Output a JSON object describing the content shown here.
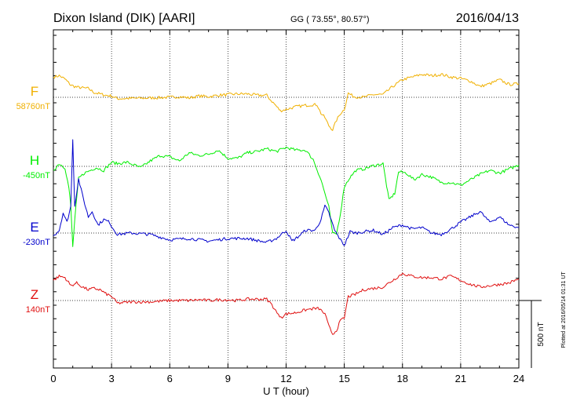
{
  "header": {
    "station": "Dixon Island (DIK)  [AARI]",
    "coords": "GG ( 73.55°,  80.57°)",
    "date": "2016/04/13"
  },
  "footer": {
    "plotted": "Plotted at 2016/05/14 01:31  UT"
  },
  "colors": {
    "F": "#f0b000",
    "H": "#00ee00",
    "E": "#0000cc",
    "Z": "#e01010",
    "axis": "#000000",
    "grid": "#000000"
  },
  "chart_data": {
    "type": "line",
    "xlabel": "U T (hour)",
    "xlim": [
      0,
      24
    ],
    "xticks": [
      0,
      3,
      6,
      9,
      12,
      15,
      18,
      21,
      24
    ],
    "scale_bar": {
      "label": "500 nT",
      "value": 500
    },
    "series": [
      {
        "name": "F",
        "baseline_label": "58760nT",
        "baseline": 58760,
        "x": [
          0,
          0.3,
          0.6,
          0.9,
          1.2,
          1.5,
          1.8,
          2.1,
          2.4,
          2.7,
          3.0,
          3.3,
          4,
          5,
          6,
          6.5,
          7,
          7.5,
          8,
          8.5,
          9,
          9.5,
          10,
          10.5,
          11,
          11.2,
          11.4,
          11.7,
          12,
          12.5,
          13,
          13.3,
          13.6,
          13.8,
          14,
          14.2,
          14.4,
          14.6,
          14.8,
          15.0,
          15.2,
          15.5,
          16,
          16.5,
          17,
          17.5,
          18,
          18.5,
          19,
          19.5,
          20,
          20.5,
          21,
          21.5,
          22,
          22.5,
          23,
          23.5,
          24
        ],
        "values": [
          150,
          160,
          135,
          90,
          75,
          70,
          65,
          35,
          25,
          15,
          10,
          -10,
          -8,
          -5,
          0,
          5,
          -5,
          10,
          5,
          15,
          20,
          25,
          25,
          15,
          15,
          -20,
          -50,
          -100,
          -90,
          -70,
          -60,
          -55,
          -55,
          -120,
          -150,
          -210,
          -240,
          -170,
          -120,
          -90,
          30,
          5,
          0,
          20,
          20,
          80,
          130,
          150,
          170,
          160,
          170,
          150,
          140,
          120,
          80,
          100,
          130,
          95,
          100
        ]
      },
      {
        "name": "H",
        "baseline_label": "-450nT",
        "baseline": -450,
        "x": [
          0,
          0.3,
          0.6,
          0.8,
          0.9,
          1.0,
          1.1,
          1.3,
          1.6,
          1.9,
          2.2,
          2.6,
          3.0,
          3.3,
          3.8,
          4.5,
          5,
          5.5,
          6,
          6.5,
          7,
          7.5,
          8,
          8.5,
          9,
          9.5,
          10,
          10.5,
          11,
          11.5,
          12,
          12.5,
          13,
          13.4,
          13.8,
          14.0,
          14.2,
          14.4,
          14.6,
          14.8,
          15.0,
          15.3,
          15.6,
          16,
          16.5,
          17,
          17.3,
          17.6,
          17.8,
          18.2,
          18.6,
          19,
          19.5,
          20,
          20.5,
          21,
          21.5,
          22,
          22.5,
          23,
          23.5,
          24
        ],
        "values": [
          -30,
          20,
          -10,
          -160,
          -300,
          -600,
          -400,
          -90,
          -50,
          -30,
          -10,
          -30,
          30,
          20,
          30,
          -10,
          40,
          80,
          70,
          40,
          100,
          80,
          90,
          120,
          60,
          60,
          100,
          110,
          130,
          110,
          140,
          120,
          120,
          50,
          -100,
          -200,
          -300,
          -500,
          -500,
          -350,
          -150,
          -80,
          -30,
          -20,
          5,
          20,
          -250,
          -200,
          -40,
          -50,
          -100,
          -60,
          -80,
          -120,
          -120,
          -140,
          -100,
          -60,
          -30,
          -50,
          -20,
          10
        ]
      },
      {
        "name": "E",
        "baseline_label": "-230nT",
        "baseline": -230,
        "x": [
          0,
          0.3,
          0.5,
          0.7,
          0.9,
          1.0,
          1.1,
          1.3,
          1.5,
          1.8,
          2.0,
          2.3,
          2.6,
          2.9,
          3.0,
          3.3,
          4,
          5,
          6,
          7,
          8,
          9,
          10,
          11,
          11.5,
          12,
          12.3,
          12.6,
          13,
          13.5,
          13.8,
          14.0,
          14.2,
          14.5,
          14.8,
          15.0,
          15.3,
          15.6,
          16,
          16.5,
          17,
          17.5,
          18,
          18.5,
          19,
          19.5,
          20,
          20.5,
          21,
          21.5,
          22,
          22.5,
          23,
          23.5,
          24
        ],
        "values": [
          -20,
          20,
          150,
          80,
          200,
          700,
          200,
          400,
          280,
          120,
          160,
          60,
          100,
          80,
          50,
          -10,
          0,
          -10,
          -50,
          -40,
          -60,
          -40,
          -40,
          -70,
          -40,
          20,
          -60,
          -30,
          20,
          20,
          100,
          200,
          150,
          20,
          -50,
          -90,
          10,
          0,
          10,
          20,
          -10,
          40,
          60,
          30,
          40,
          0,
          -10,
          30,
          80,
          120,
          160,
          80,
          120,
          60,
          40
        ]
      },
      {
        "name": "Z",
        "baseline_label": "140nT",
        "baseline": 140,
        "x": [
          0,
          0.3,
          0.6,
          0.9,
          1.2,
          1.5,
          1.8,
          2.1,
          2.4,
          2.7,
          3.0,
          3.3,
          4,
          5,
          6,
          6.5,
          7,
          7.5,
          8,
          8.5,
          9,
          9.5,
          10,
          10.5,
          11,
          11.2,
          11.4,
          11.6,
          11.8,
          12,
          12.5,
          13,
          13.4,
          13.7,
          14.0,
          14.2,
          14.4,
          14.6,
          14.8,
          15.0,
          15.2,
          15.5,
          16,
          16.5,
          17,
          17.5,
          18,
          18.5,
          19,
          19.5,
          20,
          20.5,
          21,
          21.5,
          22,
          22.5,
          23,
          23.5,
          24
        ],
        "values": [
          150,
          180,
          170,
          110,
          130,
          100,
          80,
          90,
          80,
          50,
          30,
          -20,
          -10,
          -10,
          0,
          0,
          0,
          5,
          0,
          5,
          5,
          0,
          10,
          10,
          10,
          -20,
          -60,
          -110,
          -120,
          -100,
          -90,
          -70,
          -60,
          -60,
          -100,
          -190,
          -250,
          -220,
          -150,
          -130,
          30,
          40,
          80,
          90,
          100,
          150,
          200,
          180,
          170,
          170,
          160,
          180,
          150,
          120,
          100,
          110,
          120,
          130,
          160
        ]
      }
    ]
  }
}
